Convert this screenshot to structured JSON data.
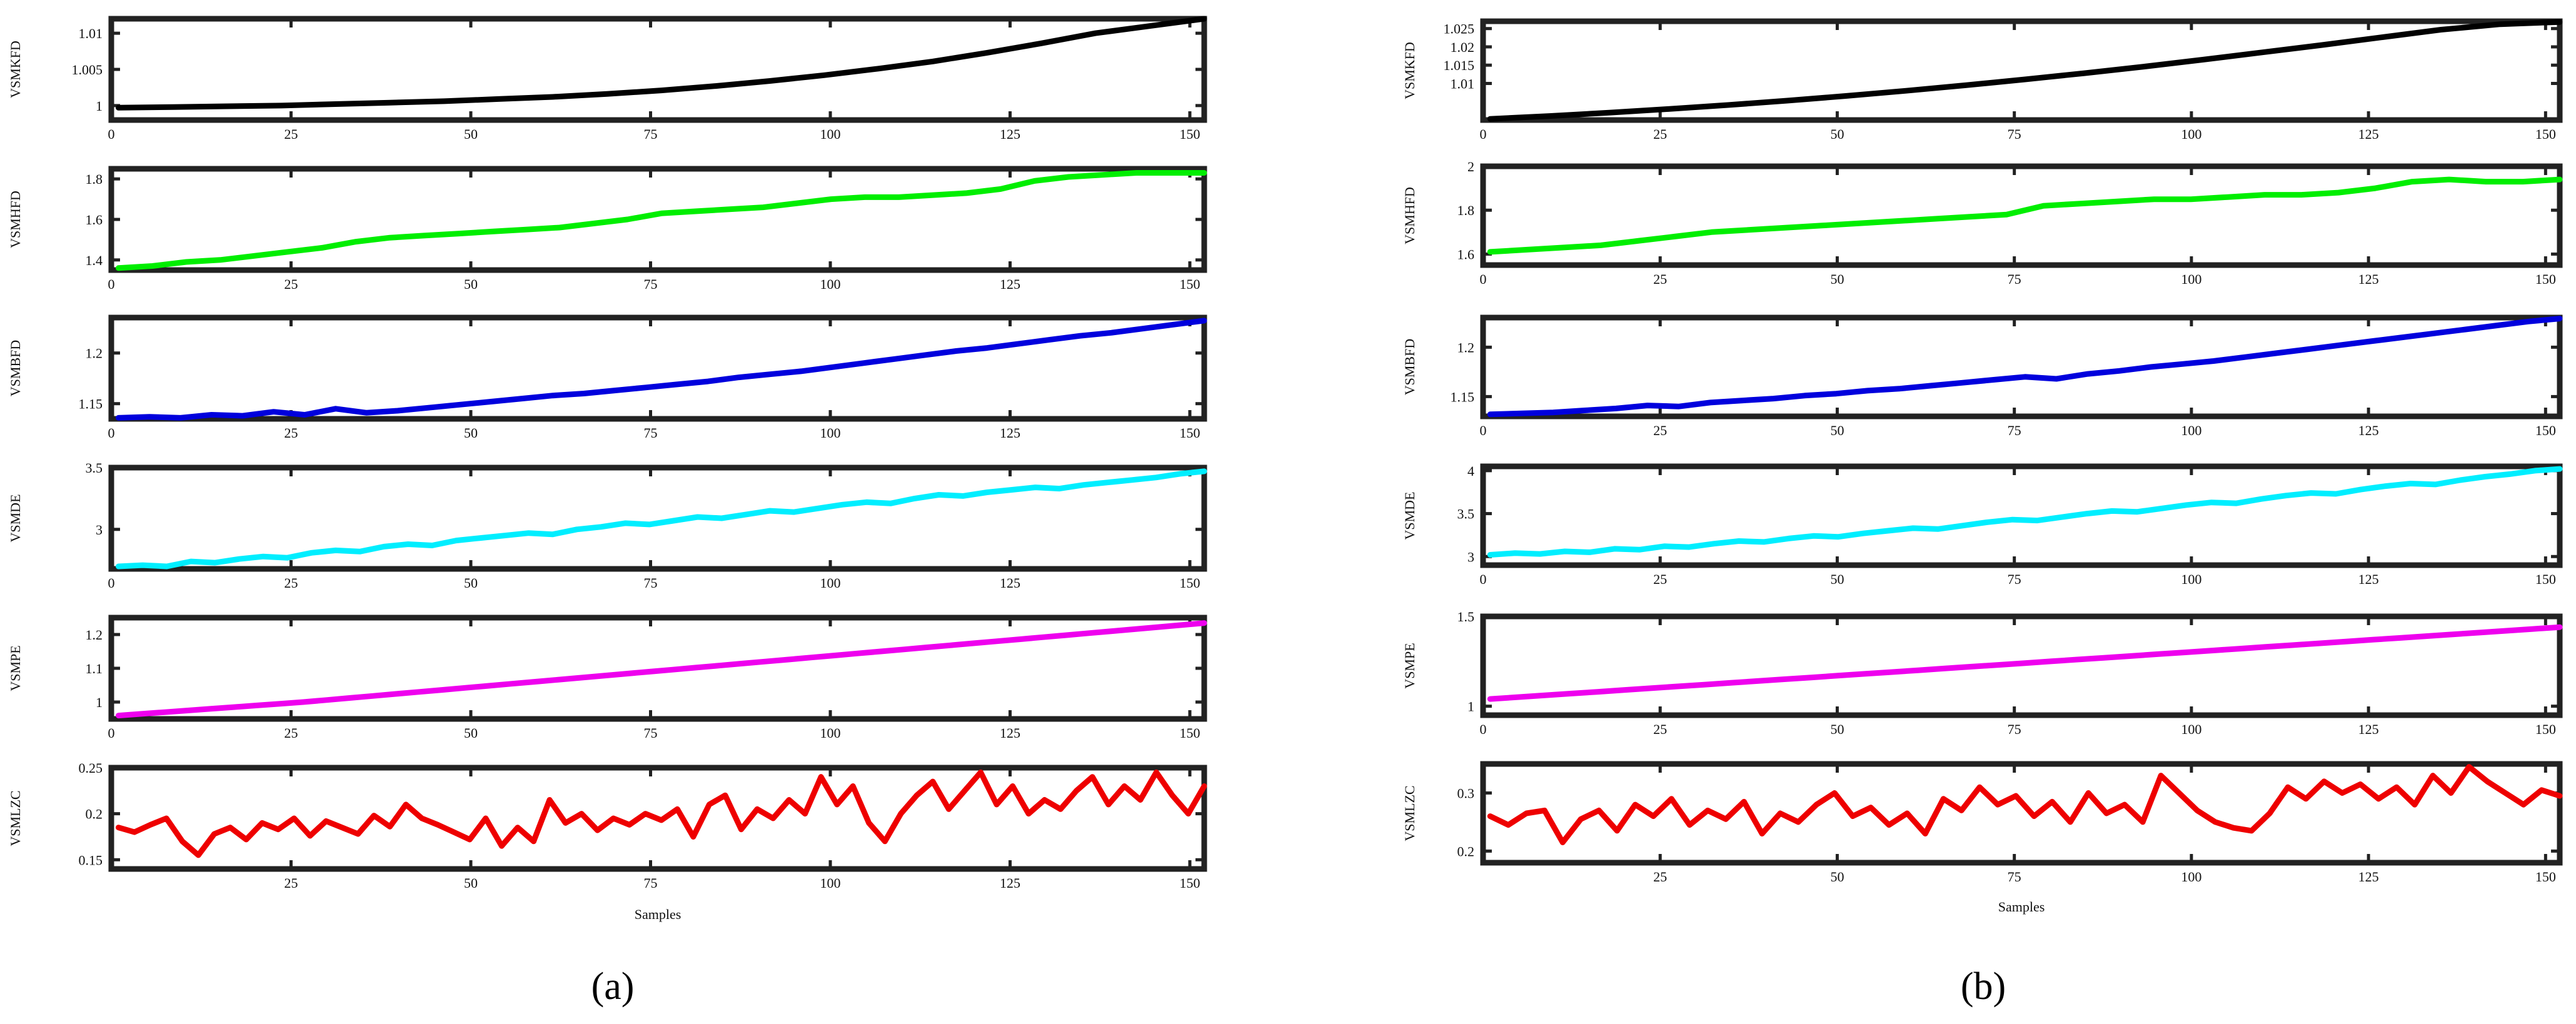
{
  "figure": {
    "panel_labels": [
      "(a)",
      "(b)"
    ]
  },
  "chart_data": [
    {
      "panel": "(a)",
      "type": "line",
      "xlabel": "Samples",
      "xlim": [
        0,
        152
      ],
      "x_start": 1,
      "x_end": 152,
      "subplots": [
        {
          "ylabel": "VSMKFD",
          "color": "#000000",
          "ylim": [
            0.998,
            1.012
          ],
          "yticks": [
            1,
            1.005,
            1.01
          ],
          "ytick_labels": [
            "1",
            "1.005",
            "1.01"
          ],
          "xticks": [
            0,
            25,
            50,
            75,
            100,
            125,
            150
          ],
          "values": [
            0.9997,
            0.9998,
            0.9999,
            1.0,
            1.0002,
            1.0004,
            1.0006,
            1.0009,
            1.0012,
            1.0016,
            1.0021,
            1.0027,
            1.0034,
            1.0042,
            1.0051,
            1.0061,
            1.0073,
            1.0086,
            1.01,
            1.011,
            1.012
          ]
        },
        {
          "ylabel": "VSMHFD",
          "color": "#00ee00",
          "ylim": [
            1.35,
            1.85
          ],
          "yticks": [
            1.4,
            1.6,
            1.8
          ],
          "ytick_labels": [
            "1.4",
            "1.6",
            "1.8"
          ],
          "xticks": [
            0,
            25,
            50,
            75,
            100,
            125,
            150
          ],
          "values": [
            1.36,
            1.37,
            1.39,
            1.4,
            1.42,
            1.44,
            1.46,
            1.49,
            1.51,
            1.52,
            1.53,
            1.54,
            1.55,
            1.56,
            1.58,
            1.6,
            1.63,
            1.64,
            1.65,
            1.66,
            1.68,
            1.7,
            1.71,
            1.71,
            1.72,
            1.73,
            1.75,
            1.79,
            1.81,
            1.82,
            1.83,
            1.83,
            1.83
          ]
        },
        {
          "ylabel": "VSMBFD",
          "color": "#0000dd",
          "ylim": [
            1.135,
            1.235
          ],
          "yticks": [
            1.15,
            1.2
          ],
          "ytick_labels": [
            "1.15",
            "1.2"
          ],
          "xticks": [
            0,
            25,
            50,
            75,
            100,
            125,
            150
          ],
          "values": [
            1.136,
            1.137,
            1.136,
            1.139,
            1.138,
            1.142,
            1.139,
            1.145,
            1.141,
            1.143,
            1.146,
            1.149,
            1.152,
            1.155,
            1.158,
            1.16,
            1.163,
            1.166,
            1.169,
            1.172,
            1.176,
            1.179,
            1.182,
            1.186,
            1.19,
            1.194,
            1.198,
            1.202,
            1.205,
            1.209,
            1.213,
            1.217,
            1.22,
            1.224,
            1.228,
            1.232
          ]
        },
        {
          "ylabel": "VSMDE",
          "color": "#00eeff",
          "ylim": [
            2.68,
            3.5
          ],
          "yticks": [
            3,
            3.5
          ],
          "ytick_labels": [
            "3",
            "3.5"
          ],
          "xticks": [
            0,
            25,
            50,
            75,
            100,
            125,
            150
          ],
          "values": [
            2.7,
            2.71,
            2.7,
            2.74,
            2.73,
            2.76,
            2.78,
            2.77,
            2.81,
            2.83,
            2.82,
            2.86,
            2.88,
            2.87,
            2.91,
            2.93,
            2.95,
            2.97,
            2.96,
            3.0,
            3.02,
            3.05,
            3.04,
            3.07,
            3.1,
            3.09,
            3.12,
            3.15,
            3.14,
            3.17,
            3.2,
            3.22,
            3.21,
            3.25,
            3.28,
            3.27,
            3.3,
            3.32,
            3.34,
            3.33,
            3.36,
            3.38,
            3.4,
            3.42,
            3.45,
            3.47
          ]
        },
        {
          "ylabel": "VSMPE",
          "color": "#ee00ee",
          "ylim": [
            0.95,
            1.25
          ],
          "yticks": [
            1,
            1.1,
            1.2
          ],
          "ytick_labels": [
            "1",
            "1.1",
            "1.2"
          ],
          "xticks": [
            0,
            25,
            50,
            75,
            100,
            125,
            150
          ],
          "values": [
            0.96,
            0.965,
            0.97,
            0.975,
            0.98,
            0.985,
            0.99,
            0.995,
            1.0,
            1.006,
            1.012,
            1.018,
            1.024,
            1.03,
            1.036,
            1.042,
            1.048,
            1.054,
            1.06,
            1.066,
            1.072,
            1.078,
            1.084,
            1.09,
            1.096,
            1.102,
            1.108,
            1.114,
            1.12,
            1.126,
            1.132,
            1.138,
            1.144,
            1.15,
            1.156,
            1.162,
            1.168,
            1.174,
            1.18,
            1.186,
            1.192,
            1.198,
            1.204,
            1.21,
            1.216,
            1.222,
            1.228,
            1.234
          ]
        },
        {
          "ylabel": "VSMLZC",
          "color": "#ee0000",
          "ylim": [
            0.14,
            0.25
          ],
          "yticks": [
            0.15,
            0.2,
            0.25
          ],
          "ytick_labels": [
            "0.15",
            "0.2",
            "0.25"
          ],
          "xticks": [
            25,
            50,
            75,
            100,
            125,
            150
          ],
          "values": [
            0.185,
            0.18,
            0.188,
            0.195,
            0.17,
            0.155,
            0.178,
            0.185,
            0.172,
            0.19,
            0.183,
            0.195,
            0.176,
            0.192,
            0.185,
            0.178,
            0.198,
            0.186,
            0.21,
            0.195,
            0.188,
            0.18,
            0.172,
            0.195,
            0.165,
            0.185,
            0.17,
            0.215,
            0.19,
            0.2,
            0.182,
            0.195,
            0.188,
            0.2,
            0.193,
            0.205,
            0.175,
            0.21,
            0.22,
            0.183,
            0.205,
            0.195,
            0.215,
            0.2,
            0.24,
            0.21,
            0.23,
            0.19,
            0.17,
            0.2,
            0.22,
            0.235,
            0.205,
            0.225,
            0.245,
            0.21,
            0.23,
            0.2,
            0.215,
            0.205,
            0.225,
            0.24,
            0.21,
            0.23,
            0.215,
            0.245,
            0.22,
            0.2,
            0.23
          ]
        }
      ]
    },
    {
      "panel": "(b)",
      "type": "line",
      "xlabel": "Samples",
      "xlim": [
        0,
        152
      ],
      "x_start": 1,
      "x_end": 152,
      "subplots": [
        {
          "ylabel": "VSMKFD",
          "color": "#000000",
          "ylim": [
            1.0,
            1.027
          ],
          "yticks": [
            1.01,
            1.015,
            1.02,
            1.025
          ],
          "ytick_labels": [
            "1.01",
            "1.015",
            "1.02",
            "1.025"
          ],
          "xticks": [
            0,
            25,
            50,
            75,
            100,
            125,
            150
          ],
          "values": [
            1.0003,
            1.0011,
            1.002,
            1.003,
            1.0041,
            1.0053,
            1.0066,
            1.008,
            1.0095,
            1.0111,
            1.0128,
            1.0146,
            1.0165,
            1.0185,
            1.0205,
            1.0226,
            1.0247,
            1.0262,
            1.0268
          ]
        },
        {
          "ylabel": "VSMHFD",
          "color": "#00ee00",
          "ylim": [
            1.55,
            2.0
          ],
          "yticks": [
            1.6,
            1.8,
            2
          ],
          "ytick_labels": [
            "1.6",
            "1.8",
            "2"
          ],
          "xticks": [
            0,
            25,
            50,
            75,
            100,
            125,
            150
          ],
          "values": [
            1.61,
            1.62,
            1.63,
            1.64,
            1.66,
            1.68,
            1.7,
            1.71,
            1.72,
            1.73,
            1.74,
            1.75,
            1.76,
            1.77,
            1.78,
            1.82,
            1.83,
            1.84,
            1.85,
            1.85,
            1.86,
            1.87,
            1.87,
            1.88,
            1.9,
            1.93,
            1.94,
            1.93,
            1.93,
            1.94
          ]
        },
        {
          "ylabel": "VSMBFD",
          "color": "#0000dd",
          "ylim": [
            1.13,
            1.23
          ],
          "yticks": [
            1.15,
            1.2
          ],
          "ytick_labels": [
            "1.15",
            "1.2"
          ],
          "xticks": [
            0,
            25,
            50,
            75,
            100,
            125,
            150
          ],
          "values": [
            1.132,
            1.133,
            1.134,
            1.136,
            1.138,
            1.141,
            1.14,
            1.144,
            1.146,
            1.148,
            1.151,
            1.153,
            1.156,
            1.158,
            1.161,
            1.164,
            1.167,
            1.17,
            1.168,
            1.173,
            1.176,
            1.18,
            1.183,
            1.186,
            1.19,
            1.194,
            1.198,
            1.202,
            1.206,
            1.21,
            1.214,
            1.218,
            1.222,
            1.226,
            1.229
          ]
        },
        {
          "ylabel": "VSMDE",
          "color": "#00eeff",
          "ylim": [
            2.9,
            4.05
          ],
          "yticks": [
            3,
            3.5,
            4
          ],
          "ytick_labels": [
            "3",
            "3.5",
            "4"
          ],
          "xticks": [
            0,
            25,
            50,
            75,
            100,
            125,
            150
          ],
          "values": [
            3.02,
            3.04,
            3.03,
            3.06,
            3.05,
            3.09,
            3.08,
            3.12,
            3.11,
            3.15,
            3.18,
            3.17,
            3.21,
            3.24,
            3.23,
            3.27,
            3.3,
            3.33,
            3.32,
            3.36,
            3.4,
            3.43,
            3.42,
            3.46,
            3.5,
            3.53,
            3.52,
            3.56,
            3.6,
            3.63,
            3.62,
            3.67,
            3.71,
            3.74,
            3.73,
            3.78,
            3.82,
            3.85,
            3.84,
            3.89,
            3.93,
            3.96,
            4.0,
            4.02
          ]
        },
        {
          "ylabel": "VSMPE",
          "color": "#ee00ee",
          "ylim": [
            0.95,
            1.5
          ],
          "yticks": [
            1,
            1.5
          ],
          "ytick_labels": [
            "1",
            "1.5"
          ],
          "xticks": [
            0,
            25,
            50,
            75,
            100,
            125,
            150
          ],
          "values": [
            1.04,
            1.05,
            1.06,
            1.07,
            1.08,
            1.09,
            1.1,
            1.11,
            1.12,
            1.13,
            1.14,
            1.15,
            1.16,
            1.17,
            1.18,
            1.19,
            1.2,
            1.21,
            1.22,
            1.23,
            1.24,
            1.25,
            1.26,
            1.27,
            1.28,
            1.29,
            1.3,
            1.31,
            1.32,
            1.33,
            1.34,
            1.35,
            1.36,
            1.37,
            1.38,
            1.39,
            1.4,
            1.41,
            1.42,
            1.43,
            1.44
          ]
        },
        {
          "ylabel": "VSMLZC",
          "color": "#ee0000",
          "ylim": [
            0.18,
            0.35
          ],
          "yticks": [
            0.2,
            0.3
          ],
          "ytick_labels": [
            "0.2",
            "0.3"
          ],
          "xticks": [
            25,
            50,
            75,
            100,
            125,
            150
          ],
          "values": [
            0.26,
            0.245,
            0.265,
            0.27,
            0.215,
            0.255,
            0.27,
            0.235,
            0.28,
            0.26,
            0.29,
            0.245,
            0.27,
            0.255,
            0.285,
            0.23,
            0.265,
            0.25,
            0.28,
            0.3,
            0.26,
            0.275,
            0.245,
            0.265,
            0.23,
            0.29,
            0.27,
            0.31,
            0.28,
            0.295,
            0.26,
            0.285,
            0.25,
            0.3,
            0.265,
            0.28,
            0.25,
            0.33,
            0.3,
            0.27,
            0.25,
            0.24,
            0.235,
            0.265,
            0.31,
            0.29,
            0.32,
            0.3,
            0.315,
            0.29,
            0.31,
            0.28,
            0.33,
            0.3,
            0.345,
            0.32,
            0.3,
            0.28,
            0.305,
            0.295
          ]
        }
      ]
    }
  ]
}
